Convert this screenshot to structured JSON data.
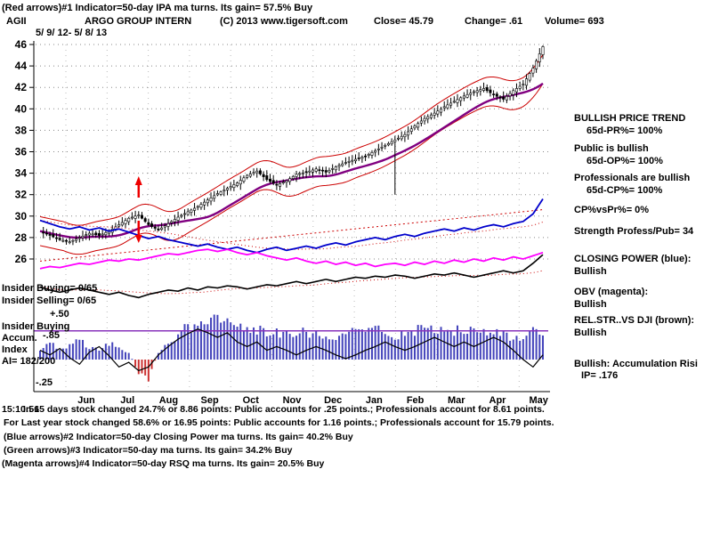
{
  "header": {
    "line1": "(Red arrows)#1 Indicator=50-day IPA ma turns. Its gain= 57.5% Buy",
    "symbol": "AGII",
    "company": "ARGO GROUP INTERN",
    "copyright": "(C) 2013 www.tigersoft.com",
    "close_label": "Close=  45.79",
    "change_label": "Change= .61",
    "volume_label": "Volume= 693",
    "date_range": "5/ 9/ 12- 5/ 8/ 13"
  },
  "left_overlay": {
    "insider_buying": "Insider Buying= 0/65",
    "insider_selling": "Insider Selling= 0/65",
    "scale_plus": "+.50",
    "scale_minus": "-.25",
    "accum_title": "Insider Buying",
    "accum_label": "Accum.",
    "accum_value": "-.85",
    "index_label": "Index",
    "ai_value": "AI= 182/200"
  },
  "right_panel": {
    "trend_title": "BULLISH PRICE TREND",
    "pr": "65d-PR%= 100%",
    "public": "Public is bullish",
    "op": "65d-OP%= 100%",
    "professionals": "Professionals are bullish",
    "cp": "65d-CP%= 100%",
    "cpvspr": "CP%vsPr%=  0%",
    "strength": "Strength Profess/Pub= 34",
    "closing_power_title": "CLOSING POWER (blue):",
    "closing_power_status": "Bullish",
    "obv_title": "OBV (magenta):",
    "obv_status": "Bullish",
    "relstr_title": "REL.STR..VS DJI (brown):",
    "relstr_status": "Bullish",
    "accum_status": "Bullish: Accumulation Risi",
    "ip": "IP=  .176"
  },
  "footer": {
    "time": "15:10:51",
    "line1": "In 65 days stock changed  24.7% or  8.86 points:  Public accounts for  .25 points.;  Professionals account for  8.61 points.",
    "line2": "For Last year stock changed  58.6% or  16.95 points:  Public accounts for  1.16 points.;  Professionals account for  15.79 points.",
    "line3": "(Blue arrows)#2 Indicator=50-day Closing Power ma turns. Its gain= 40.2% Buy",
    "line4": "(Green arrows)#3 Indicator=50-day ma turns. Its gain= 34.2% Buy",
    "line5": "(Magenta arrows)#4 Indicator=50-day RSQ ma turns. Its gain= 20.5% Buy"
  },
  "chart_data": {
    "type": "candlestick",
    "title": "AGII ARGO GROUP INTERN daily chart 5/9/12 - 5/8/13",
    "ylim": [
      26,
      46
    ],
    "y_ticks": [
      46,
      44,
      42,
      40,
      38,
      36,
      34,
      32,
      30,
      28,
      26
    ],
    "months": [
      "Jun",
      "Jul",
      "Aug",
      "Sep",
      "Oct",
      "Nov",
      "Dec",
      "Jan",
      "Feb",
      "Mar",
      "Apr",
      "May"
    ],
    "close_weekly": [
      28.6,
      28.2,
      27.8,
      27.6,
      28.0,
      28.4,
      28.2,
      28.6,
      29.2,
      29.8,
      30.1,
      29.2,
      28.7,
      29.3,
      29.9,
      30.4,
      30.9,
      31.5,
      32.1,
      32.6,
      33.1,
      33.8,
      34.2,
      33.4,
      32.9,
      33.3,
      33.9,
      34.1,
      34.4,
      34.1,
      34.6,
      35.0,
      35.3,
      35.6,
      36.1,
      36.6,
      37.1,
      37.6,
      38.4,
      39.1,
      39.6,
      40.2,
      40.7,
      41.2,
      41.6,
      41.9,
      41.3,
      40.9,
      41.7,
      42.3,
      43.8,
      45.8
    ],
    "spike": {
      "week_index": 36,
      "low": 32.0
    },
    "closing_power": [
      29.6,
      29.3,
      29.0,
      28.8,
      29.0,
      28.7,
      28.9,
      28.6,
      28.8,
      28.5,
      28.2,
      27.9,
      28.1,
      27.8,
      27.6,
      27.4,
      27.2,
      27.4,
      27.1,
      26.9,
      27.1,
      26.8,
      26.6,
      26.9,
      27.1,
      26.8,
      27.0,
      27.2,
      27.0,
      27.3,
      27.5,
      27.3,
      27.6,
      27.8,
      28.0,
      27.8,
      28.1,
      28.3,
      28.1,
      28.4,
      28.6,
      28.8,
      28.6,
      28.9,
      28.7,
      29.0,
      29.2,
      29.0,
      29.3,
      29.5,
      30.2,
      31.6
    ],
    "obv": [
      25.1,
      25.3,
      25.2,
      25.4,
      25.6,
      25.5,
      25.7,
      25.9,
      25.8,
      26.0,
      25.9,
      26.1,
      26.3,
      26.5,
      26.4,
      26.6,
      26.8,
      26.9,
      26.7,
      26.9,
      26.6,
      26.4,
      26.6,
      26.3,
      26.1,
      25.9,
      26.1,
      25.8,
      25.6,
      25.8,
      25.5,
      25.7,
      25.4,
      25.6,
      25.3,
      25.5,
      25.6,
      25.4,
      25.7,
      25.5,
      25.8,
      25.6,
      25.9,
      25.7,
      26.0,
      25.8,
      26.1,
      25.9,
      26.2,
      26.0,
      26.3,
      26.6
    ],
    "rel_str": [
      23.4,
      23.1,
      22.9,
      23.1,
      23.3,
      23.1,
      22.9,
      22.7,
      22.9,
      22.6,
      22.4,
      22.7,
      22.9,
      23.1,
      23.0,
      23.3,
      23.1,
      23.4,
      23.3,
      23.5,
      23.4,
      23.2,
      23.4,
      23.6,
      23.5,
      23.7,
      23.9,
      23.7,
      23.9,
      24.1,
      23.9,
      24.1,
      24.3,
      24.2,
      24.4,
      24.3,
      24.5,
      24.4,
      24.2,
      24.4,
      24.6,
      24.5,
      24.7,
      24.5,
      24.3,
      24.5,
      24.7,
      24.9,
      24.7,
      24.9,
      25.6,
      26.4
    ],
    "accum_histogram": [
      0.12,
      0.18,
      0.1,
      0.16,
      0.2,
      0.14,
      0.1,
      0.18,
      0.14,
      0.08,
      -0.14,
      -0.2,
      0.08,
      0.18,
      0.28,
      0.34,
      0.4,
      0.44,
      0.42,
      0.38,
      0.34,
      0.3,
      0.33,
      0.28,
      0.3,
      0.26,
      0.29,
      0.31,
      0.26,
      0.21,
      0.23,
      0.26,
      0.31,
      0.29,
      0.33,
      0.31,
      0.26,
      0.29,
      0.31,
      0.33,
      0.31,
      0.29,
      0.31,
      0.33,
      0.36,
      0.31,
      0.29,
      0.26,
      0.21,
      0.26,
      0.31,
      0.29
    ],
    "accum_line": [
      0.1,
      0.05,
      0.12,
      0.02,
      -0.05,
      0.08,
      0.14,
      0.04,
      -0.08,
      -0.03,
      -0.12,
      -0.08,
      0.05,
      0.14,
      0.22,
      0.28,
      0.33,
      0.29,
      0.24,
      0.29,
      0.19,
      0.14,
      0.19,
      0.1,
      0.14,
      0.1,
      0.05,
      0.1,
      0.14,
      0.1,
      0.05,
      0.01,
      0.05,
      0.1,
      0.14,
      0.19,
      0.14,
      0.1,
      0.14,
      0.19,
      0.24,
      0.19,
      0.14,
      0.19,
      0.14,
      0.19,
      0.24,
      0.19,
      0.1,
      0.0,
      -0.08,
      0.05
    ],
    "histogram_scale": {
      "plus": 0.5,
      "minus": -0.25,
      "purple_line": 0.31
    },
    "trend_dotted_line": {
      "from": 25.8,
      "to": 30.6
    },
    "buy_arrow_week": 10,
    "colors": {
      "closing_power": "#0000cc",
      "obv": "#ff00ff",
      "rel_str": "#000000",
      "bands": "#cc0000",
      "ma": "#800080",
      "histogram_pos": "#4444bb",
      "histogram_neg": "#cc3333",
      "purple_reference": "#8833bb",
      "arrows": "#ee0000"
    }
  }
}
